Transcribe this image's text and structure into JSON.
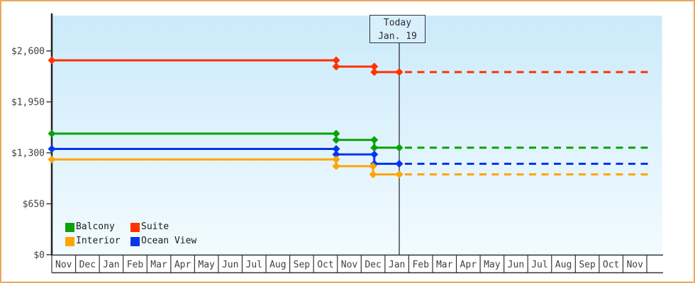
{
  "chart_data": {
    "type": "line",
    "title": "",
    "y_axis": {
      "tick_labels": [
        "$0",
        "$650",
        "$1,300",
        "$1,950",
        "$2,600"
      ],
      "tick_values": [
        0,
        650,
        1300,
        1950,
        2600
      ],
      "ylim": [
        0,
        3050
      ]
    },
    "x_axis": {
      "months": [
        "Nov",
        "Dec",
        "Jan",
        "Feb",
        "Mar",
        "Apr",
        "May",
        "Jun",
        "Jul",
        "Aug",
        "Sep",
        "Oct",
        "Nov",
        "Dec",
        "Jan",
        "Feb",
        "Mar",
        "Apr",
        "May",
        "Jun",
        "Jul",
        "Aug",
        "Sep",
        "Oct",
        "Nov"
      ]
    },
    "today": {
      "title": "Today",
      "date_label": "Jan. 19",
      "month_index": 14.6
    },
    "projection_end_month_index": 25.6,
    "series": [
      {
        "name": "Suite",
        "color": "#ff3200",
        "steps": [
          {
            "month_index": 0,
            "price": 2480
          },
          {
            "month_index": 11.95,
            "price": 2400
          },
          {
            "month_index": 13.55,
            "price": 2330
          }
        ]
      },
      {
        "name": "Balcony",
        "color": "#09a309",
        "steps": [
          {
            "month_index": 0,
            "price": 1545
          },
          {
            "month_index": 11.95,
            "price": 1465
          },
          {
            "month_index": 13.55,
            "price": 1365
          }
        ]
      },
      {
        "name": "Ocean View",
        "color": "#0535ef",
        "steps": [
          {
            "month_index": 0,
            "price": 1350
          },
          {
            "month_index": 11.95,
            "price": 1280
          },
          {
            "month_index": 13.55,
            "price": 1160
          }
        ]
      },
      {
        "name": "Interior",
        "color": "#ffa500",
        "steps": [
          {
            "month_index": 0,
            "price": 1215
          },
          {
            "month_index": 11.95,
            "price": 1130
          },
          {
            "month_index": 13.5,
            "price": 1025
          }
        ]
      }
    ],
    "legend": {
      "entries": [
        {
          "label": "Balcony",
          "color": "#09a309"
        },
        {
          "label": "Suite",
          "color": "#ff3200"
        },
        {
          "label": "Interior",
          "color": "#ffa500"
        },
        {
          "label": "Ocean View",
          "color": "#0535ef"
        }
      ]
    },
    "style_colors": {
      "frame_border": "#eca85c",
      "plot_bg_top": "#cbeafa",
      "plot_bg_bottom": "#f2fbff",
      "today_line": "#3c3c46",
      "today_box_bg": "#d7f0fc"
    }
  }
}
